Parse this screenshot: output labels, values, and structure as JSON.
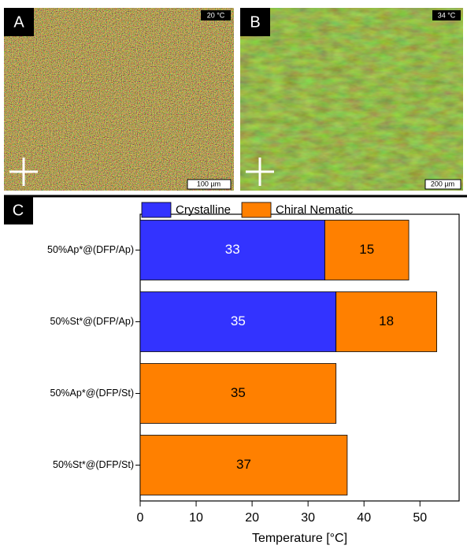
{
  "panels": [
    {
      "label": "A",
      "temperature": "20 °C",
      "scale": "100 µm"
    },
    {
      "label": "B",
      "temperature": "34 °C",
      "scale": "200 µm"
    }
  ],
  "chart_label": "C",
  "chart_data": {
    "type": "stacked-barh",
    "categories": [
      "50%Ap*@(DFP/Ap)",
      "50%St*@(DFP/Ap)",
      "50%Ap*@(DFP/St)",
      "50%St*@(DFP/St)"
    ],
    "series": [
      {
        "name": "Crystalline",
        "color": "#3333ff",
        "label_color": "#ffffff",
        "values": [
          33,
          35,
          null,
          null
        ]
      },
      {
        "name": "Chiral Nematic",
        "color": "#ff8000",
        "label_color": "#000000",
        "values": [
          15,
          18,
          35,
          37
        ]
      }
    ],
    "xlim": [
      0,
      57
    ],
    "xticks": [
      0,
      10,
      20,
      30,
      40,
      50
    ],
    "xlabel": "Temperature [°C]",
    "legend": "top"
  }
}
